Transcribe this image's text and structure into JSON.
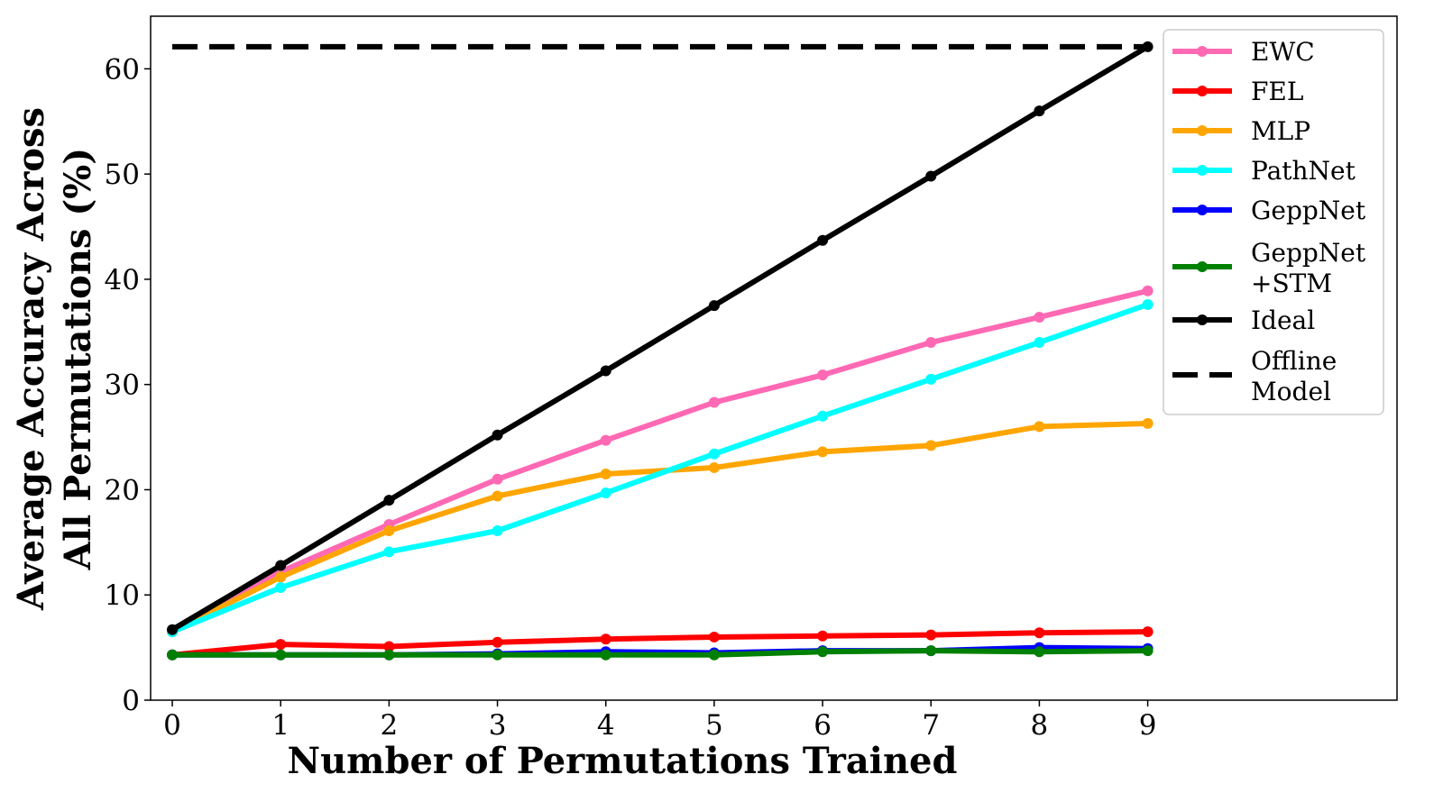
{
  "chart_data": {
    "type": "line",
    "title": "",
    "xlabel": "Number of Permutations Trained",
    "ylabel_lines": [
      "Average Accuracy Across",
      "All Permutations (%)"
    ],
    "x": [
      0,
      1,
      2,
      3,
      4,
      5,
      6,
      7,
      8,
      9
    ],
    "x_ticks": [
      "0",
      "1",
      "2",
      "3",
      "4",
      "5",
      "6",
      "7",
      "8",
      "9"
    ],
    "y_ticks": [
      "0",
      "10",
      "20",
      "30",
      "40",
      "50",
      "60"
    ],
    "xlim": [
      -0.2,
      11.3
    ],
    "ylim": [
      0,
      65
    ],
    "grid": false,
    "legend_position": "upper-right",
    "series": [
      {
        "name": "EWC",
        "color": "#ff69b4",
        "values": [
          6.5,
          12.2,
          16.7,
          21.0,
          24.7,
          28.3,
          30.9,
          34.0,
          36.4,
          38.9
        ]
      },
      {
        "name": "FEL",
        "color": "#ff0000",
        "values": [
          4.3,
          5.3,
          5.1,
          5.5,
          5.8,
          6.0,
          6.1,
          6.2,
          6.4,
          6.5
        ]
      },
      {
        "name": "MLP",
        "color": "#ffa500",
        "values": [
          6.5,
          11.7,
          16.1,
          19.4,
          21.5,
          22.1,
          23.6,
          24.2,
          26.0,
          26.3
        ]
      },
      {
        "name": "PathNet",
        "color": "#00ffff",
        "values": [
          6.5,
          10.7,
          14.1,
          16.1,
          19.7,
          23.4,
          27.0,
          30.5,
          34.0,
          37.6
        ]
      },
      {
        "name": "GeppNet",
        "color": "#0000ff",
        "values": [
          4.3,
          4.3,
          4.3,
          4.4,
          4.6,
          4.5,
          4.7,
          4.7,
          5.0,
          4.9
        ]
      },
      {
        "name": "GeppNet\n+STM",
        "color": "#008000",
        "values": [
          4.3,
          4.3,
          4.3,
          4.3,
          4.3,
          4.3,
          4.6,
          4.7,
          4.6,
          4.7
        ]
      },
      {
        "name": "Ideal",
        "color": "#000000",
        "values": [
          6.7,
          12.8,
          19.0,
          25.2,
          31.3,
          37.5,
          43.7,
          49.8,
          56.0,
          62.1
        ]
      }
    ],
    "reference_line": {
      "name": "Offline\nModel",
      "color": "#000000",
      "style": "dashed",
      "y": 62.1,
      "x_range": [
        0,
        9
      ]
    }
  }
}
